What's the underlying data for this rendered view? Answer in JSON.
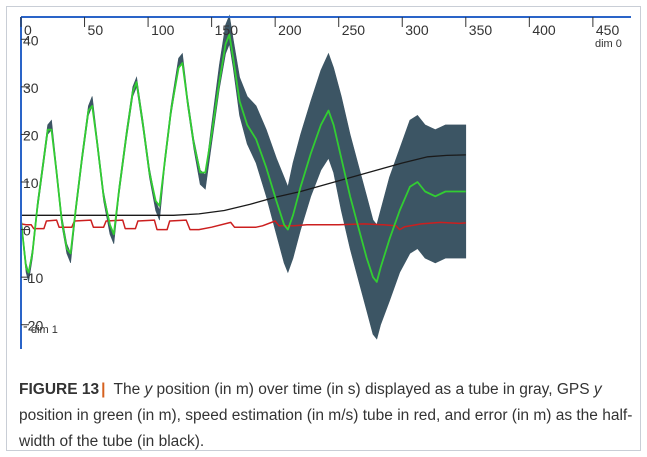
{
  "caption": {
    "figure_label": "FIGURE 13",
    "separator": "|",
    "part1": " The ",
    "var_y1": "y",
    "part2": " position (in m) over time (in s) displayed as a tube in gray, GPS ",
    "var_y2": "y",
    "part3": " position in green (in m), speed estimation (in m/s) tube in red, and error (in m) as the half-width of the tube (in black)."
  },
  "chart_data": {
    "type": "line",
    "x_axis": {
      "label": "dim 0",
      "range": [
        0,
        480
      ],
      "ticks": [
        0,
        50,
        100,
        150,
        200,
        250,
        300,
        350,
        400,
        450
      ]
    },
    "y_axis": {
      "label": "dim 1",
      "range": [
        -23,
        43
      ],
      "ticks": [
        40,
        30,
        20,
        10,
        0,
        -10,
        -20
      ]
    },
    "colors": {
      "tube": "#3c5564",
      "gps": "#32cd32",
      "speed": "#cc1f1f",
      "error": "#1a1a1a",
      "axis": "#2a64c8"
    },
    "series": [
      {
        "id": "position-tube",
        "points": [
          [
            0,
            3,
            0
          ],
          [
            2,
            -3,
            1
          ],
          [
            4,
            -8,
            1
          ],
          [
            6,
            -10,
            1
          ],
          [
            9,
            -5,
            1
          ],
          [
            13,
            5,
            1
          ],
          [
            18,
            15,
            1
          ],
          [
            21,
            21,
            1
          ],
          [
            24,
            22,
            1
          ],
          [
            28,
            12,
            1
          ],
          [
            32,
            2,
            1
          ],
          [
            36,
            -4,
            1
          ],
          [
            39,
            -6,
            1
          ],
          [
            43,
            4,
            1
          ],
          [
            48,
            15,
            1
          ],
          [
            53,
            25,
            1
          ],
          [
            56,
            27,
            1
          ],
          [
            60,
            18,
            1
          ],
          [
            65,
            7,
            1
          ],
          [
            70,
            0,
            1
          ],
          [
            73,
            -2,
            1
          ],
          [
            77,
            8,
            1
          ],
          [
            83,
            20,
            1
          ],
          [
            88,
            29,
            1
          ],
          [
            91,
            31,
            1
          ],
          [
            96,
            22,
            1
          ],
          [
            101,
            12,
            1
          ],
          [
            106,
            5,
            1
          ],
          [
            109,
            3,
            1
          ],
          [
            113,
            14,
            1
          ],
          [
            118,
            25,
            1
          ],
          [
            124,
            35,
            1
          ],
          [
            127,
            36,
            1
          ],
          [
            131,
            27,
            1
          ],
          [
            136,
            18,
            1
          ],
          [
            141,
            11,
            1.5
          ],
          [
            145,
            10,
            1.5
          ],
          [
            150,
            20,
            2
          ],
          [
            156,
            32,
            2.5
          ],
          [
            161,
            40,
            3
          ],
          [
            164,
            42,
            3
          ],
          [
            167,
            37,
            3
          ],
          [
            172,
            28,
            4
          ],
          [
            178,
            23,
            5
          ],
          [
            185,
            20,
            6
          ],
          [
            193,
            14,
            7
          ],
          [
            201,
            7,
            8
          ],
          [
            207,
            2,
            9
          ],
          [
            210,
            0,
            9
          ],
          [
            214,
            4,
            10
          ],
          [
            220,
            10,
            10
          ],
          [
            228,
            17,
            10
          ],
          [
            236,
            23,
            10.5
          ],
          [
            242,
            26,
            11
          ],
          [
            246,
            23,
            11
          ],
          [
            252,
            16,
            12
          ],
          [
            259,
            8,
            12
          ],
          [
            266,
            1,
            12
          ],
          [
            272,
            -5,
            12
          ],
          [
            277,
            -10,
            12
          ],
          [
            280,
            -11,
            12
          ],
          [
            283,
            -8,
            12
          ],
          [
            290,
            -2,
            13
          ],
          [
            298,
            4,
            13
          ],
          [
            306,
            9,
            14
          ],
          [
            312,
            10,
            14
          ],
          [
            318,
            8,
            14
          ],
          [
            326,
            7,
            14
          ],
          [
            334,
            8,
            14
          ],
          [
            342,
            8,
            14
          ],
          [
            350,
            8,
            14
          ]
        ]
      },
      {
        "id": "gps-y",
        "points": [
          [
            0,
            2
          ],
          [
            2,
            -3
          ],
          [
            4,
            -8
          ],
          [
            6,
            -9
          ],
          [
            9,
            -5
          ],
          [
            13,
            5
          ],
          [
            18,
            15
          ],
          [
            21,
            21
          ],
          [
            24,
            21
          ],
          [
            28,
            12
          ],
          [
            32,
            2
          ],
          [
            36,
            -4
          ],
          [
            39,
            -5
          ],
          [
            43,
            4
          ],
          [
            48,
            15
          ],
          [
            53,
            25
          ],
          [
            56,
            26
          ],
          [
            60,
            18
          ],
          [
            65,
            7
          ],
          [
            70,
            1
          ],
          [
            73,
            -1
          ],
          [
            77,
            8
          ],
          [
            83,
            20
          ],
          [
            88,
            29
          ],
          [
            91,
            31
          ],
          [
            96,
            22
          ],
          [
            101,
            12
          ],
          [
            106,
            6
          ],
          [
            109,
            5
          ],
          [
            113,
            14
          ],
          [
            118,
            25
          ],
          [
            124,
            34
          ],
          [
            127,
            35
          ],
          [
            131,
            27
          ],
          [
            136,
            18
          ],
          [
            141,
            12
          ],
          [
            145,
            12
          ],
          [
            150,
            20
          ],
          [
            156,
            31
          ],
          [
            161,
            39
          ],
          [
            164,
            41
          ],
          [
            167,
            36
          ],
          [
            172,
            27
          ],
          [
            178,
            22
          ],
          [
            185,
            19
          ],
          [
            193,
            13
          ],
          [
            201,
            6
          ],
          [
            207,
            1
          ],
          [
            210,
            0
          ],
          [
            214,
            3
          ],
          [
            220,
            9
          ],
          [
            228,
            16
          ],
          [
            236,
            22
          ],
          [
            242,
            25
          ],
          [
            246,
            22
          ],
          [
            252,
            15
          ],
          [
            259,
            7
          ],
          [
            266,
            0
          ],
          [
            272,
            -6
          ],
          [
            277,
            -10
          ],
          [
            280,
            -11
          ],
          [
            283,
            -8
          ],
          [
            290,
            -2
          ],
          [
            298,
            4
          ],
          [
            306,
            9
          ],
          [
            312,
            10
          ],
          [
            318,
            8
          ],
          [
            326,
            7
          ],
          [
            334,
            8
          ],
          [
            342,
            8
          ],
          [
            350,
            8
          ]
        ]
      },
      {
        "id": "speed-estimation",
        "points": [
          [
            0,
            1.2
          ],
          [
            4,
            1
          ],
          [
            8,
            1
          ],
          [
            10,
            0.2
          ],
          [
            18,
            0.2
          ],
          [
            20,
            1.8
          ],
          [
            28,
            2
          ],
          [
            30,
            0.5
          ],
          [
            40,
            0.5
          ],
          [
            42,
            1.8
          ],
          [
            55,
            2
          ],
          [
            57,
            0.5
          ],
          [
            65,
            0.5
          ],
          [
            67,
            1.8
          ],
          [
            80,
            2
          ],
          [
            82,
            0.2
          ],
          [
            90,
            0.2
          ],
          [
            92,
            1.8
          ],
          [
            105,
            2
          ],
          [
            107,
            0
          ],
          [
            115,
            0
          ],
          [
            117,
            1.8
          ],
          [
            130,
            2
          ],
          [
            133,
            0
          ],
          [
            140,
            0
          ],
          [
            150,
            0.5
          ],
          [
            165,
            1.5
          ],
          [
            168,
            0.5
          ],
          [
            178,
            0.5
          ],
          [
            185,
            0.5
          ],
          [
            190,
            0.8
          ],
          [
            200,
            1.8
          ],
          [
            203,
            0.8
          ],
          [
            215,
            0.8
          ],
          [
            225,
            1
          ],
          [
            250,
            1
          ],
          [
            270,
            1.2
          ],
          [
            285,
            1
          ],
          [
            295,
            0.8
          ],
          [
            298,
            0
          ],
          [
            302,
            0.6
          ],
          [
            315,
            1.2
          ],
          [
            330,
            1.5
          ],
          [
            345,
            1.3
          ],
          [
            350,
            1.4
          ]
        ]
      },
      {
        "id": "error",
        "points": [
          [
            0,
            3
          ],
          [
            20,
            3
          ],
          [
            40,
            3
          ],
          [
            60,
            3
          ],
          [
            80,
            3
          ],
          [
            100,
            3
          ],
          [
            120,
            3
          ],
          [
            140,
            3.3
          ],
          [
            160,
            4
          ],
          [
            180,
            5.3
          ],
          [
            200,
            6.8
          ],
          [
            220,
            8
          ],
          [
            240,
            9.5
          ],
          [
            260,
            11
          ],
          [
            280,
            12.5
          ],
          [
            300,
            14
          ],
          [
            320,
            15.3
          ],
          [
            335,
            15.6
          ],
          [
            350,
            15.7
          ]
        ]
      }
    ]
  }
}
